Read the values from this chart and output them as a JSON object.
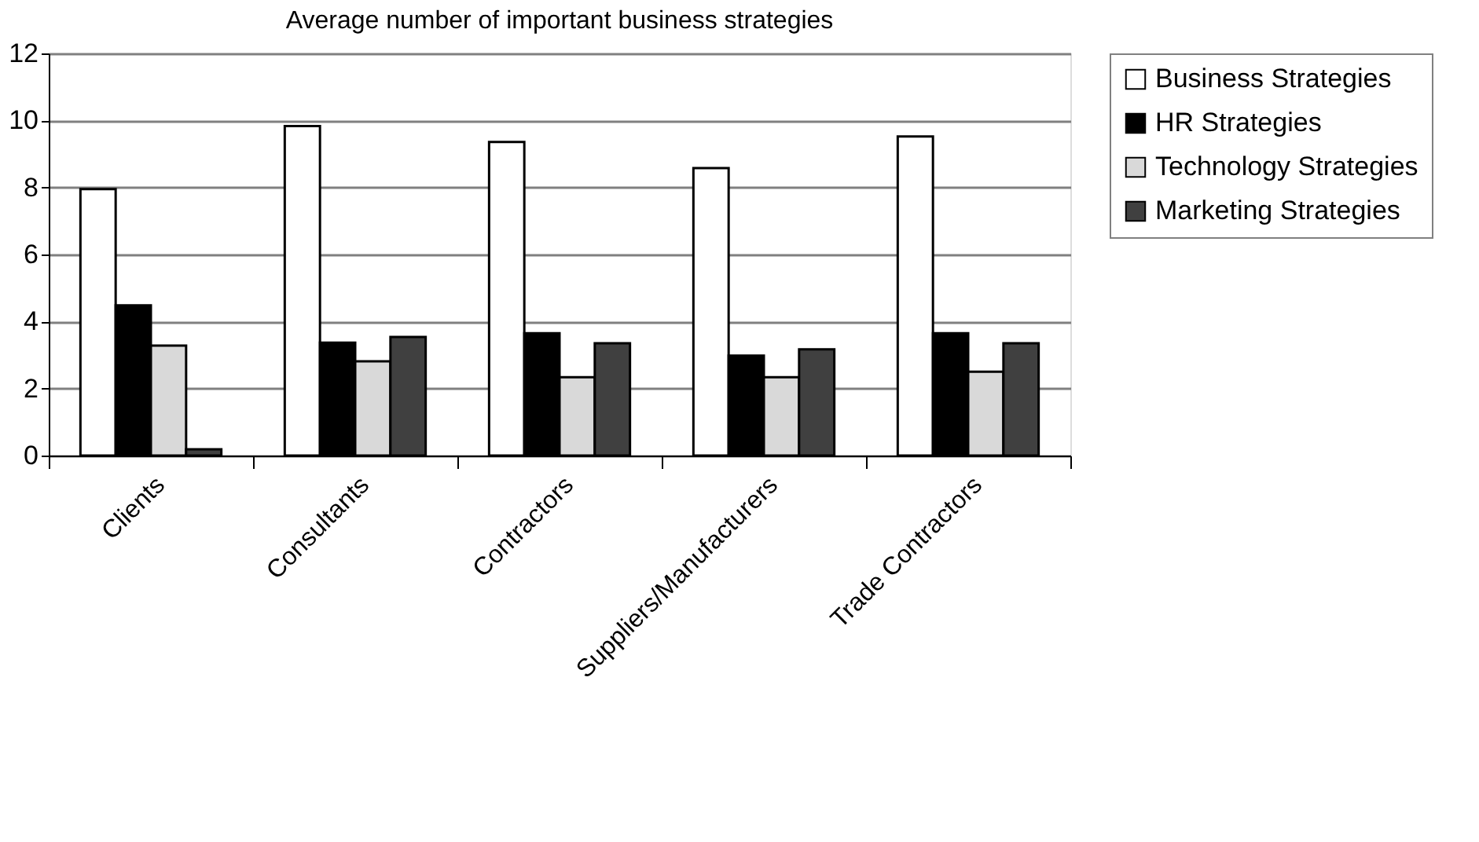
{
  "chart_data": {
    "type": "bar",
    "title": "Average number of important business strategies",
    "categories": [
      "Clients",
      "Consultants",
      "Contractors",
      "Suppliers/Manufacturers",
      "Trade Contractors"
    ],
    "series": [
      {
        "name": "Business Strategies",
        "color": "#ffffff",
        "values": [
          7.95,
          9.83,
          9.36,
          8.58,
          9.52
        ]
      },
      {
        "name": "HR Strategies",
        "color": "#000000",
        "values": [
          4.48,
          3.37,
          3.65,
          2.98,
          3.65
        ]
      },
      {
        "name": "Technology Strategies",
        "color": "#d9d9d9",
        "values": [
          3.28,
          2.81,
          2.34,
          2.34,
          2.5
        ]
      },
      {
        "name": "Marketing Strategies",
        "color": "#404040",
        "values": [
          0.19,
          3.54,
          3.35,
          3.17,
          3.35
        ]
      }
    ],
    "ylim": [
      0,
      12
    ],
    "yticks": [
      0,
      2,
      4,
      6,
      8,
      10,
      12
    ],
    "grid": "y",
    "legend": "right"
  }
}
